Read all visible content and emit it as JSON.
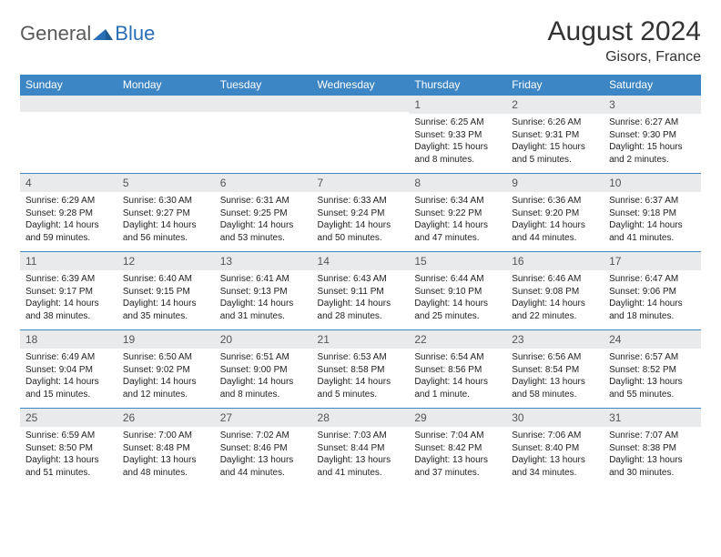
{
  "brand": {
    "general": "General",
    "blue": "Blue"
  },
  "title": "August 2024",
  "location": "Gisors, France",
  "colors": {
    "header_bg": "#3d86c6",
    "header_text": "#ffffff",
    "daynum_bg": "#e9eaec",
    "border": "#3d86c6",
    "logo_gray": "#5a5a5a",
    "logo_blue": "#2a6fb5"
  },
  "daynames": [
    "Sunday",
    "Monday",
    "Tuesday",
    "Wednesday",
    "Thursday",
    "Friday",
    "Saturday"
  ],
  "weeks": [
    [
      {
        "n": "",
        "sunrise": "",
        "sunset": "",
        "day1": "",
        "day2": ""
      },
      {
        "n": "",
        "sunrise": "",
        "sunset": "",
        "day1": "",
        "day2": ""
      },
      {
        "n": "",
        "sunrise": "",
        "sunset": "",
        "day1": "",
        "day2": ""
      },
      {
        "n": "",
        "sunrise": "",
        "sunset": "",
        "day1": "",
        "day2": ""
      },
      {
        "n": "1",
        "sunrise": "Sunrise: 6:25 AM",
        "sunset": "Sunset: 9:33 PM",
        "day1": "Daylight: 15 hours",
        "day2": "and 8 minutes."
      },
      {
        "n": "2",
        "sunrise": "Sunrise: 6:26 AM",
        "sunset": "Sunset: 9:31 PM",
        "day1": "Daylight: 15 hours",
        "day2": "and 5 minutes."
      },
      {
        "n": "3",
        "sunrise": "Sunrise: 6:27 AM",
        "sunset": "Sunset: 9:30 PM",
        "day1": "Daylight: 15 hours",
        "day2": "and 2 minutes."
      }
    ],
    [
      {
        "n": "4",
        "sunrise": "Sunrise: 6:29 AM",
        "sunset": "Sunset: 9:28 PM",
        "day1": "Daylight: 14 hours",
        "day2": "and 59 minutes."
      },
      {
        "n": "5",
        "sunrise": "Sunrise: 6:30 AM",
        "sunset": "Sunset: 9:27 PM",
        "day1": "Daylight: 14 hours",
        "day2": "and 56 minutes."
      },
      {
        "n": "6",
        "sunrise": "Sunrise: 6:31 AM",
        "sunset": "Sunset: 9:25 PM",
        "day1": "Daylight: 14 hours",
        "day2": "and 53 minutes."
      },
      {
        "n": "7",
        "sunrise": "Sunrise: 6:33 AM",
        "sunset": "Sunset: 9:24 PM",
        "day1": "Daylight: 14 hours",
        "day2": "and 50 minutes."
      },
      {
        "n": "8",
        "sunrise": "Sunrise: 6:34 AM",
        "sunset": "Sunset: 9:22 PM",
        "day1": "Daylight: 14 hours",
        "day2": "and 47 minutes."
      },
      {
        "n": "9",
        "sunrise": "Sunrise: 6:36 AM",
        "sunset": "Sunset: 9:20 PM",
        "day1": "Daylight: 14 hours",
        "day2": "and 44 minutes."
      },
      {
        "n": "10",
        "sunrise": "Sunrise: 6:37 AM",
        "sunset": "Sunset: 9:18 PM",
        "day1": "Daylight: 14 hours",
        "day2": "and 41 minutes."
      }
    ],
    [
      {
        "n": "11",
        "sunrise": "Sunrise: 6:39 AM",
        "sunset": "Sunset: 9:17 PM",
        "day1": "Daylight: 14 hours",
        "day2": "and 38 minutes."
      },
      {
        "n": "12",
        "sunrise": "Sunrise: 6:40 AM",
        "sunset": "Sunset: 9:15 PM",
        "day1": "Daylight: 14 hours",
        "day2": "and 35 minutes."
      },
      {
        "n": "13",
        "sunrise": "Sunrise: 6:41 AM",
        "sunset": "Sunset: 9:13 PM",
        "day1": "Daylight: 14 hours",
        "day2": "and 31 minutes."
      },
      {
        "n": "14",
        "sunrise": "Sunrise: 6:43 AM",
        "sunset": "Sunset: 9:11 PM",
        "day1": "Daylight: 14 hours",
        "day2": "and 28 minutes."
      },
      {
        "n": "15",
        "sunrise": "Sunrise: 6:44 AM",
        "sunset": "Sunset: 9:10 PM",
        "day1": "Daylight: 14 hours",
        "day2": "and 25 minutes."
      },
      {
        "n": "16",
        "sunrise": "Sunrise: 6:46 AM",
        "sunset": "Sunset: 9:08 PM",
        "day1": "Daylight: 14 hours",
        "day2": "and 22 minutes."
      },
      {
        "n": "17",
        "sunrise": "Sunrise: 6:47 AM",
        "sunset": "Sunset: 9:06 PM",
        "day1": "Daylight: 14 hours",
        "day2": "and 18 minutes."
      }
    ],
    [
      {
        "n": "18",
        "sunrise": "Sunrise: 6:49 AM",
        "sunset": "Sunset: 9:04 PM",
        "day1": "Daylight: 14 hours",
        "day2": "and 15 minutes."
      },
      {
        "n": "19",
        "sunrise": "Sunrise: 6:50 AM",
        "sunset": "Sunset: 9:02 PM",
        "day1": "Daylight: 14 hours",
        "day2": "and 12 minutes."
      },
      {
        "n": "20",
        "sunrise": "Sunrise: 6:51 AM",
        "sunset": "Sunset: 9:00 PM",
        "day1": "Daylight: 14 hours",
        "day2": "and 8 minutes."
      },
      {
        "n": "21",
        "sunrise": "Sunrise: 6:53 AM",
        "sunset": "Sunset: 8:58 PM",
        "day1": "Daylight: 14 hours",
        "day2": "and 5 minutes."
      },
      {
        "n": "22",
        "sunrise": "Sunrise: 6:54 AM",
        "sunset": "Sunset: 8:56 PM",
        "day1": "Daylight: 14 hours",
        "day2": "and 1 minute."
      },
      {
        "n": "23",
        "sunrise": "Sunrise: 6:56 AM",
        "sunset": "Sunset: 8:54 PM",
        "day1": "Daylight: 13 hours",
        "day2": "and 58 minutes."
      },
      {
        "n": "24",
        "sunrise": "Sunrise: 6:57 AM",
        "sunset": "Sunset: 8:52 PM",
        "day1": "Daylight: 13 hours",
        "day2": "and 55 minutes."
      }
    ],
    [
      {
        "n": "25",
        "sunrise": "Sunrise: 6:59 AM",
        "sunset": "Sunset: 8:50 PM",
        "day1": "Daylight: 13 hours",
        "day2": "and 51 minutes."
      },
      {
        "n": "26",
        "sunrise": "Sunrise: 7:00 AM",
        "sunset": "Sunset: 8:48 PM",
        "day1": "Daylight: 13 hours",
        "day2": "and 48 minutes."
      },
      {
        "n": "27",
        "sunrise": "Sunrise: 7:02 AM",
        "sunset": "Sunset: 8:46 PM",
        "day1": "Daylight: 13 hours",
        "day2": "and 44 minutes."
      },
      {
        "n": "28",
        "sunrise": "Sunrise: 7:03 AM",
        "sunset": "Sunset: 8:44 PM",
        "day1": "Daylight: 13 hours",
        "day2": "and 41 minutes."
      },
      {
        "n": "29",
        "sunrise": "Sunrise: 7:04 AM",
        "sunset": "Sunset: 8:42 PM",
        "day1": "Daylight: 13 hours",
        "day2": "and 37 minutes."
      },
      {
        "n": "30",
        "sunrise": "Sunrise: 7:06 AM",
        "sunset": "Sunset: 8:40 PM",
        "day1": "Daylight: 13 hours",
        "day2": "and 34 minutes."
      },
      {
        "n": "31",
        "sunrise": "Sunrise: 7:07 AM",
        "sunset": "Sunset: 8:38 PM",
        "day1": "Daylight: 13 hours",
        "day2": "and 30 minutes."
      }
    ]
  ]
}
